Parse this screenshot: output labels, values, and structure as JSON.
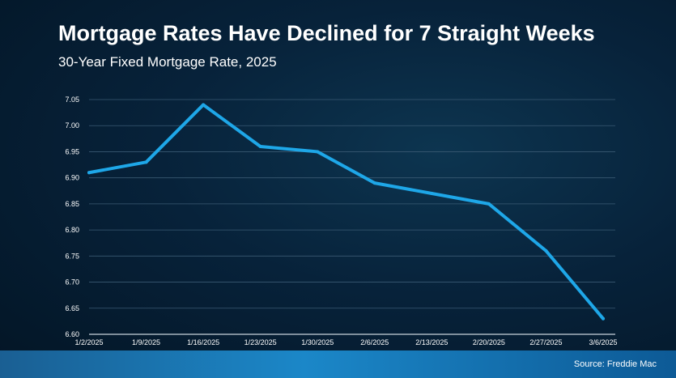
{
  "header": {
    "title": "Mortgage Rates Have Declined for 7 Straight Weeks",
    "subtitle": "30-Year Fixed Mortgage Rate, 2025"
  },
  "footer": {
    "source": "Source: Freddie Mac"
  },
  "chart_data": {
    "type": "line",
    "title": "Mortgage Rates Have Declined for 7 Straight Weeks",
    "subtitle": "30-Year Fixed Mortgage Rate, 2025",
    "xlabel": "",
    "ylabel": "",
    "categories": [
      "1/2/2025",
      "1/9/2025",
      "1/16/2025",
      "1/23/2025",
      "1/30/2025",
      "2/6/2025",
      "2/13/2025",
      "2/20/2025",
      "2/27/2025",
      "3/6/2025"
    ],
    "series": [
      {
        "values": [
          6.91,
          6.93,
          7.04,
          6.96,
          6.95,
          6.89,
          6.87,
          6.85,
          6.76,
          6.63
        ]
      }
    ],
    "yticks": [
      "6.60",
      "6.65",
      "6.70",
      "6.75",
      "6.80",
      "6.85",
      "6.90",
      "6.95",
      "7.00",
      "7.05"
    ],
    "ylim": [
      6.6,
      7.05
    ],
    "grid": true,
    "legend": "none",
    "line_color": "#1ea7e8",
    "grid_color": "#3a5a73"
  }
}
